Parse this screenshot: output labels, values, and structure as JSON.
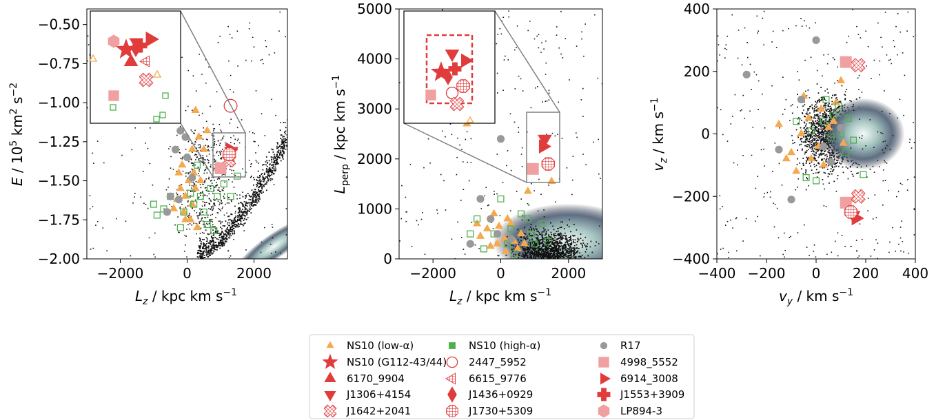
{
  "colors": {
    "low_alpha": "#f5a94e",
    "high_alpha": "#4db04d",
    "r17": "#999999",
    "red": "#e03c3c",
    "pink": "#f0a0a0",
    "inset_box": "#808080"
  },
  "chart_data": [
    {
      "type": "scatter",
      "panel": "E-Lz",
      "xlabel": "L_z / kpc km s^-1",
      "ylabel": "E / 10^5 km^2 s^-2",
      "xlim": [
        -3000,
        3000
      ],
      "ylim": [
        -2.0,
        -0.4
      ],
      "xticks": [
        "−2000",
        "0",
        "2000"
      ],
      "yticks": [
        "−0.50",
        "−0.75",
        "−1.00",
        "−1.25",
        "−1.50",
        "−1.75",
        "−2.00"
      ],
      "xtick_values": [
        -2000,
        0,
        2000
      ],
      "ytick_values": [
        -0.5,
        -0.75,
        -1.0,
        -1.25,
        -1.5,
        -1.75,
        -2.0
      ],
      "inset": {
        "xlim": [
          700,
          1750
        ],
        "ylim": [
          -1.5,
          -1.2
        ]
      },
      "series": [
        {
          "name": "NS10 (low-α)",
          "points": [
            [
              250,
              -1.05
            ],
            [
              600,
              -1.18
            ],
            [
              350,
              -1.22
            ],
            [
              150,
              -1.3
            ],
            [
              -150,
              -1.4
            ],
            [
              50,
              -1.5
            ],
            [
              250,
              -1.55
            ],
            [
              -50,
              -1.6
            ],
            [
              150,
              -1.65
            ],
            [
              -250,
              -1.45
            ],
            [
              -100,
              -1.7
            ],
            [
              100,
              -1.75
            ],
            [
              300,
              -1.8
            ],
            [
              -400,
              -1.68
            ],
            [
              400,
              -1.5
            ],
            [
              -200,
              -1.55
            ],
            [
              500,
              -1.3
            ],
            [
              -50,
              -1.75
            ],
            [
              200,
              -1.45
            ],
            [
              -300,
              -1.62
            ]
          ]
        },
        {
          "name": "NS10 (high-α)",
          "points": [
            [
              300,
              -1.4
            ],
            [
              700,
              -1.55
            ],
            [
              900,
              -1.6
            ],
            [
              -900,
              -1.72
            ],
            [
              -1000,
              -1.65
            ],
            [
              1500,
              -1.47
            ],
            [
              600,
              -1.78
            ],
            [
              -200,
              -1.8
            ],
            [
              100,
              -1.58
            ],
            [
              500,
              -1.7
            ],
            [
              1100,
              -1.52
            ],
            [
              -500,
              -1.6
            ],
            [
              800,
              -1.82
            ],
            [
              200,
              -1.65
            ],
            [
              -100,
              -1.7
            ],
            [
              1300,
              -1.6
            ],
            [
              400,
              -1.6
            ],
            [
              -700,
              -1.68
            ]
          ]
        },
        {
          "name": "R17",
          "points": [
            [
              -200,
              -1.18
            ],
            [
              -350,
              -1.3
            ],
            [
              -50,
              -1.22
            ],
            [
              -500,
              -1.6
            ],
            [
              150,
              -1.48
            ],
            [
              0,
              -1.35
            ],
            [
              -250,
              -1.62
            ],
            [
              -600,
              -1.7
            ]
          ]
        },
        {
          "name": "2447_5952",
          "points": [
            [
              1300,
              -1.02
            ]
          ]
        },
        {
          "name": "6914_3008",
          "points": [
            [
              1290,
              -1.3
            ]
          ]
        },
        {
          "name": "J1306+4154",
          "points": [
            [
              1320,
              -1.31
            ]
          ]
        },
        {
          "name": "J1642+2041",
          "points": [
            [
              1250,
              -1.37
            ]
          ]
        },
        {
          "name": "J1730+5309",
          "points": [
            [
              1260,
              -1.33
            ]
          ]
        },
        {
          "name": "4998_5552",
          "points": [
            [
              1000,
              -1.42
            ]
          ]
        }
      ]
    },
    {
      "type": "scatter",
      "panel": "Lperp-Lz",
      "xlabel": "L_z / kpc km s^-1",
      "ylabel": "L_perp / kpc km s^-1",
      "xlim": [
        -3000,
        3000
      ],
      "ylim": [
        0,
        5000
      ],
      "xticks": [
        "−2000",
        "0",
        "2000"
      ],
      "yticks": [
        "0",
        "1000",
        "2000",
        "3000",
        "4000",
        "5000"
      ],
      "xtick_values": [
        -2000,
        0,
        2000
      ],
      "ytick_values": [
        0,
        1000,
        2000,
        3000,
        4000,
        5000
      ],
      "inset": {
        "xlim": [
          750,
          1750
        ],
        "ylim": [
          1500,
          2900
        ]
      },
      "series": [
        {
          "name": "NS10 (low-α)",
          "points": [
            [
              -1000,
              2700
            ],
            [
              800,
              1350
            ],
            [
              1500,
              1550
            ],
            [
              -200,
              900
            ],
            [
              -400,
              600
            ],
            [
              100,
              400
            ],
            [
              300,
              700
            ],
            [
              -100,
              300
            ],
            [
              500,
              200
            ],
            [
              -600,
              450
            ],
            [
              200,
              800
            ],
            [
              -300,
              250
            ],
            [
              600,
              500
            ],
            [
              400,
              350
            ],
            [
              -50,
              650
            ],
            [
              150,
              150
            ],
            [
              -700,
              700
            ],
            [
              700,
              300
            ]
          ]
        },
        {
          "name": "NS10 (high-α)",
          "points": [
            [
              0,
              1200
            ],
            [
              300,
              600
            ],
            [
              800,
              800
            ],
            [
              -900,
              500
            ],
            [
              1000,
              300
            ],
            [
              1400,
              350
            ],
            [
              -500,
              200
            ],
            [
              600,
              900
            ],
            [
              -200,
              500
            ],
            [
              1200,
              700
            ],
            [
              200,
              300
            ],
            [
              -700,
              800
            ],
            [
              900,
              500
            ],
            [
              400,
              100
            ]
          ]
        },
        {
          "name": "R17",
          "points": [
            [
              0,
              2400
            ],
            [
              -600,
              1200
            ],
            [
              -300,
              800
            ],
            [
              -100,
              500
            ],
            [
              300,
              400
            ],
            [
              -900,
              300
            ]
          ]
        },
        {
          "name": "6914_3008",
          "points": [
            [
              1250,
              2250
            ]
          ]
        },
        {
          "name": "J1306+4154",
          "points": [
            [
              1300,
              2400
            ]
          ]
        },
        {
          "name": "J1730+5309",
          "points": [
            [
              1400,
              1900
            ]
          ]
        },
        {
          "name": "4998_5552",
          "points": [
            [
              950,
              1800
            ]
          ]
        }
      ]
    },
    {
      "type": "scatter",
      "panel": "vz-vy",
      "xlabel": "v_y / km s^-1",
      "ylabel": "v_z / km s^-1",
      "xlim": [
        -400,
        400
      ],
      "ylim": [
        -400,
        400
      ],
      "xticks": [
        "−400",
        "−200",
        "0",
        "200",
        "400"
      ],
      "yticks": [
        "400",
        "200",
        "0",
        "−200",
        "−400"
      ],
      "xtick_values": [
        -400,
        -200,
        0,
        200,
        400
      ],
      "ytick_values": [
        400,
        200,
        0,
        -200,
        -400
      ],
      "series": [
        {
          "name": "NS10 (low-α)",
          "points": [
            [
              100,
              170
            ],
            [
              -50,
              120
            ],
            [
              -100,
              -60
            ],
            [
              20,
              80
            ],
            [
              -150,
              30
            ],
            [
              50,
              20
            ],
            [
              -80,
              -120
            ],
            [
              10,
              -40
            ],
            [
              70,
              40
            ],
            [
              -120,
              -80
            ],
            [
              30,
              -100
            ],
            [
              -30,
              50
            ],
            [
              110,
              -30
            ],
            [
              -60,
              0
            ],
            [
              180,
              -190
            ],
            [
              150,
              -210
            ],
            [
              80,
              100
            ],
            [
              -20,
              -80
            ]
          ]
        },
        {
          "name": "NS10 (high-α)",
          "points": [
            [
              40,
              110
            ],
            [
              90,
              90
            ],
            [
              -40,
              -140
            ],
            [
              130,
              50
            ],
            [
              60,
              -10
            ],
            [
              -80,
              40
            ],
            [
              100,
              0
            ],
            [
              150,
              -20
            ],
            [
              0,
              -150
            ],
            [
              190,
              -130
            ],
            [
              70,
              60
            ],
            [
              -20,
              10
            ],
            [
              120,
              -60
            ],
            [
              30,
              40
            ]
          ]
        },
        {
          "name": "R17",
          "points": [
            [
              0,
              300
            ],
            [
              -280,
              190
            ],
            [
              -60,
              110
            ],
            [
              30,
              -40
            ],
            [
              -150,
              -50
            ],
            [
              60,
              -90
            ],
            [
              -100,
              -210
            ],
            [
              100,
              20
            ]
          ]
        },
        {
          "name": "4998_5552",
          "points": [
            [
              120,
              230
            ],
            [
              120,
              -220
            ]
          ]
        },
        {
          "name": "J1642+2041",
          "points": [
            [
              170,
              220
            ],
            [
              170,
              -200
            ]
          ]
        },
        {
          "name": "6914_3008",
          "points": [
            [
              160,
              -270
            ]
          ]
        },
        {
          "name": "J1306+4154",
          "points": [
            [
              150,
              -260
            ]
          ]
        },
        {
          "name": "J1730+5309",
          "points": [
            [
              140,
              -250
            ]
          ]
        }
      ]
    }
  ],
  "legend": [
    {
      "label": "NS10 (low-α)",
      "marker": "triangle-up",
      "color": "#f5a94e",
      "style": "filled",
      "size": "small"
    },
    {
      "label": "NS10 (high-α)",
      "marker": "square",
      "color": "#4db04d",
      "style": "filled",
      "size": "small"
    },
    {
      "label": "R17",
      "marker": "circle",
      "color": "#999999",
      "style": "filled",
      "size": "small"
    },
    {
      "label": "NS10 (G112-43/44)",
      "marker": "star",
      "color": "#e03c3c",
      "style": "filled"
    },
    {
      "label": "2447_5952",
      "marker": "circle",
      "color": "#e03c3c",
      "style": "open"
    },
    {
      "label": "4998_5552",
      "marker": "square",
      "color": "#f0a0a0",
      "style": "filled"
    },
    {
      "label": "6170_9904",
      "marker": "triangle-up",
      "color": "#e03c3c",
      "style": "filled"
    },
    {
      "label": "6615_9776",
      "marker": "triangle-left",
      "color": "#e03c3c",
      "style": "hatched"
    },
    {
      "label": "6914_3008",
      "marker": "triangle-right",
      "color": "#e03c3c",
      "style": "filled"
    },
    {
      "label": "J1306+4154",
      "marker": "triangle-down",
      "color": "#e03c3c",
      "style": "filled"
    },
    {
      "label": "J1436+0929",
      "marker": "diamond",
      "color": "#e03c3c",
      "style": "filled"
    },
    {
      "label": "J1553+3909",
      "marker": "plus",
      "color": "#e03c3c",
      "style": "filled"
    },
    {
      "label": "J1642+2041",
      "marker": "cross",
      "color": "#e03c3c",
      "style": "hatched"
    },
    {
      "label": "J1730+5309",
      "marker": "octagon",
      "color": "#e03c3c",
      "style": "hatched"
    },
    {
      "label": "LP894-3",
      "marker": "hexagon",
      "color": "#f0a0a0",
      "style": "filled"
    }
  ]
}
